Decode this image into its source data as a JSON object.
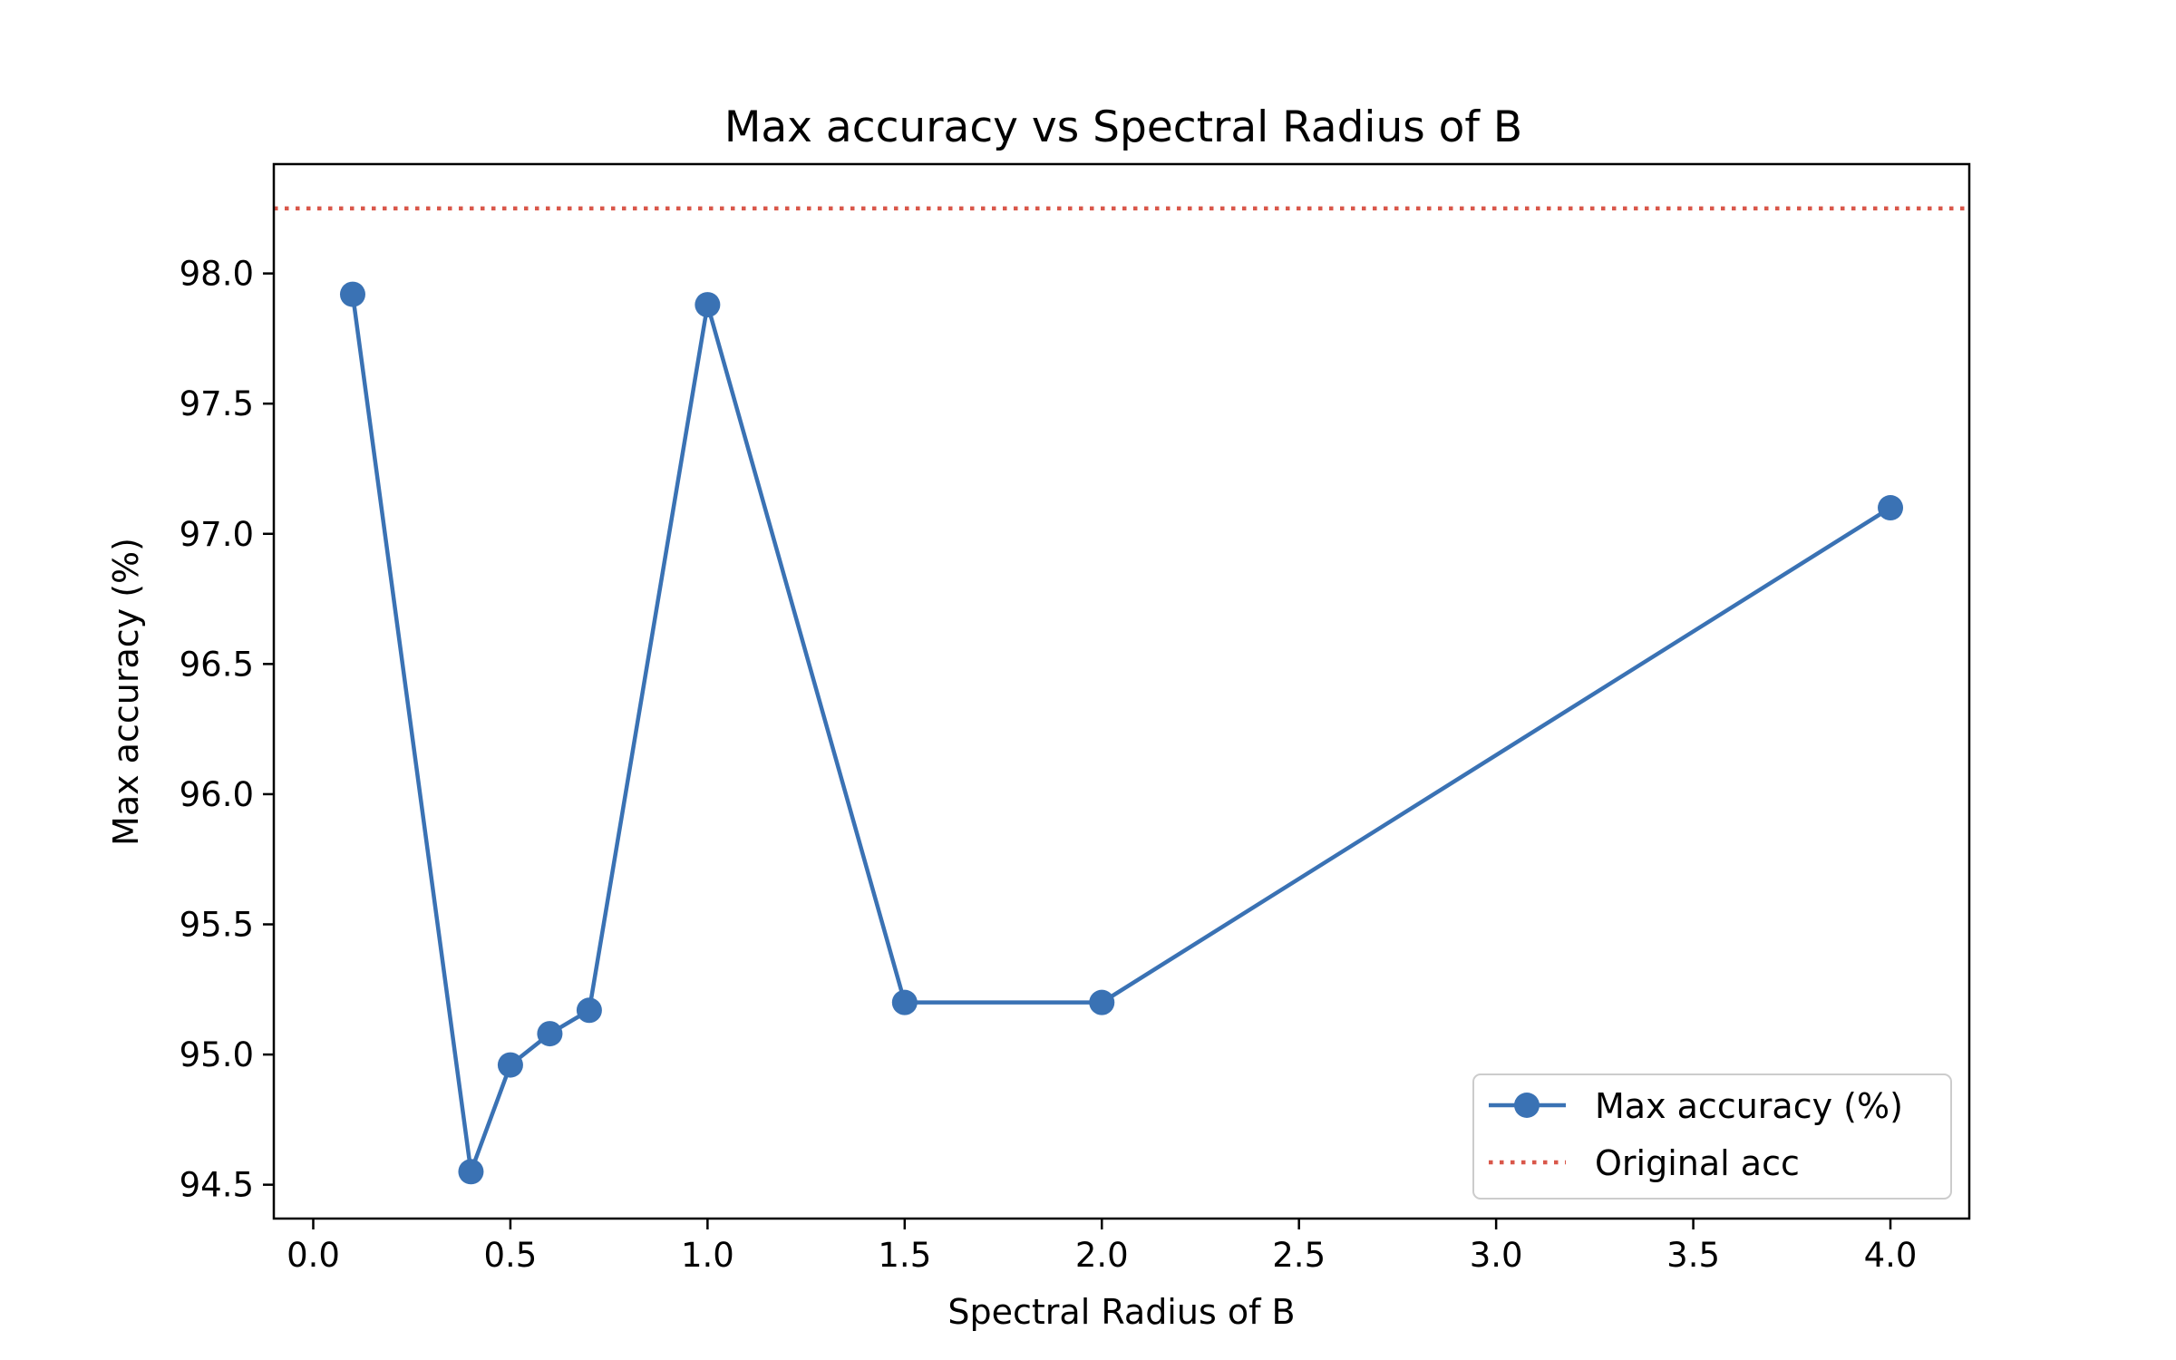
{
  "chart_data": {
    "type": "line",
    "title": "Max accuracy vs Spectral Radius of B",
    "xlabel": "Spectral Radius of B",
    "ylabel": "Max accuracy (%)",
    "xlim": [
      -0.1,
      4.2
    ],
    "ylim": [
      94.37,
      98.42
    ],
    "xticks": [
      0.0,
      0.5,
      1.0,
      1.5,
      2.0,
      2.5,
      3.0,
      3.5,
      4.0
    ],
    "xtick_labels": [
      "0.0",
      "0.5",
      "1.0",
      "1.5",
      "2.0",
      "2.5",
      "3.0",
      "3.5",
      "4.0"
    ],
    "yticks": [
      94.5,
      95.0,
      95.5,
      96.0,
      96.5,
      97.0,
      97.5,
      98.0
    ],
    "ytick_labels": [
      "94.5",
      "95.0",
      "95.5",
      "96.0",
      "96.5",
      "97.0",
      "97.5",
      "98.0"
    ],
    "grid": false,
    "legend_position": "lower-right",
    "series": [
      {
        "name": "Max accuracy (%)",
        "color": "#3a72b4",
        "style": "solid-with-circle-markers",
        "x": [
          0.1,
          0.4,
          0.5,
          0.6,
          0.7,
          1.0,
          1.5,
          2.0,
          4.0
        ],
        "y": [
          97.92,
          94.55,
          94.96,
          95.08,
          95.17,
          97.88,
          95.2,
          95.2,
          97.1
        ]
      }
    ],
    "reference_lines": [
      {
        "name": "Original acc",
        "orientation": "horizontal",
        "y": 98.25,
        "color": "#d9574a",
        "style": "dotted"
      }
    ]
  }
}
